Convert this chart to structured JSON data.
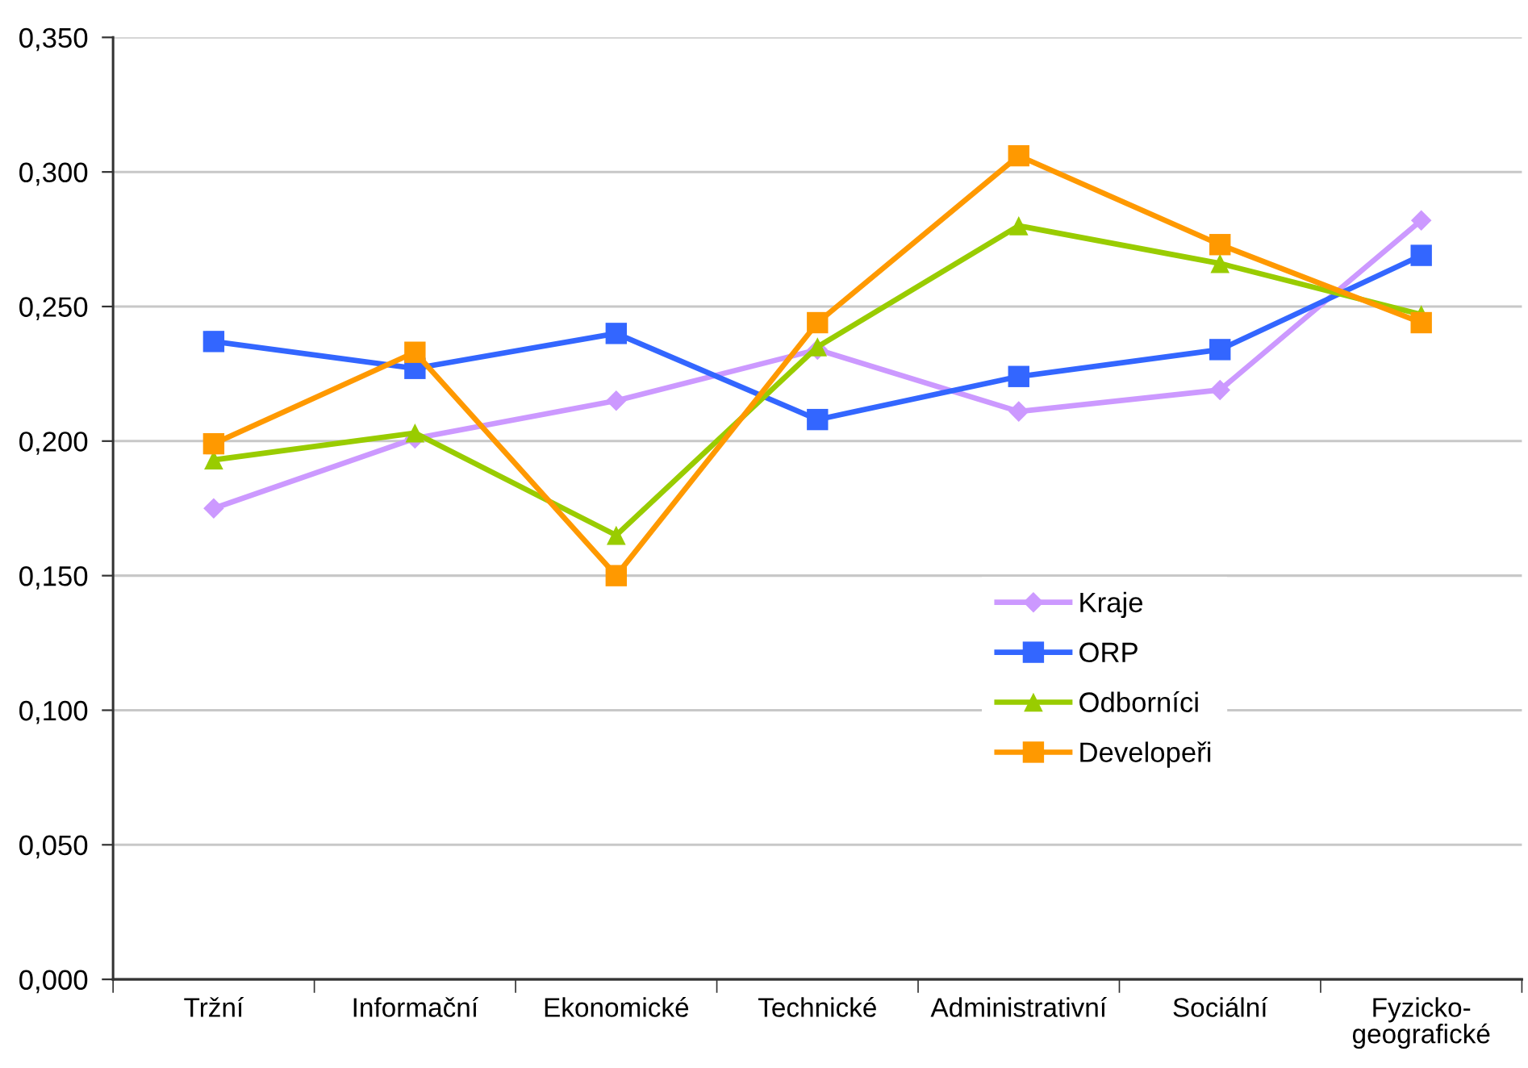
{
  "chart_data": {
    "type": "line",
    "categories": [
      "Tržní",
      "Informační",
      "Ekonomické",
      "Technické",
      "Administrativní",
      "Sociální",
      "Fyzicko-geografické"
    ],
    "series": [
      {
        "name": "Kraje",
        "color": "#cc99ff",
        "marker": "diamond",
        "values": [
          0.175,
          0.201,
          0.215,
          0.234,
          0.211,
          0.219,
          0.282
        ]
      },
      {
        "name": "ORP",
        "color": "#3366ff",
        "marker": "square",
        "values": [
          0.237,
          0.227,
          0.24,
          0.208,
          0.224,
          0.234,
          0.269
        ]
      },
      {
        "name": "Odborníci",
        "color": "#99cc00",
        "marker": "triangle",
        "values": [
          0.193,
          0.203,
          0.165,
          0.235,
          0.28,
          0.266,
          0.247
        ]
      },
      {
        "name": "Developeři",
        "color": "#ff9900",
        "marker": "square",
        "values": [
          0.199,
          0.233,
          0.15,
          0.244,
          0.306,
          0.273,
          0.244
        ]
      }
    ],
    "ylim": [
      0,
      0.35
    ],
    "yticks": [
      {
        "value": 0,
        "label": "0,000"
      },
      {
        "value": 0.05,
        "label": "0,050"
      },
      {
        "value": 0.1,
        "label": "0,100"
      },
      {
        "value": 0.15,
        "label": "0,150"
      },
      {
        "value": 0.2,
        "label": "0,200"
      },
      {
        "value": 0.25,
        "label": "0,250"
      },
      {
        "value": 0.3,
        "label": "0,300"
      },
      {
        "value": 0.35,
        "label": "0,350"
      }
    ],
    "grid": "y",
    "legend": "center right",
    "line_style": "solid"
  }
}
